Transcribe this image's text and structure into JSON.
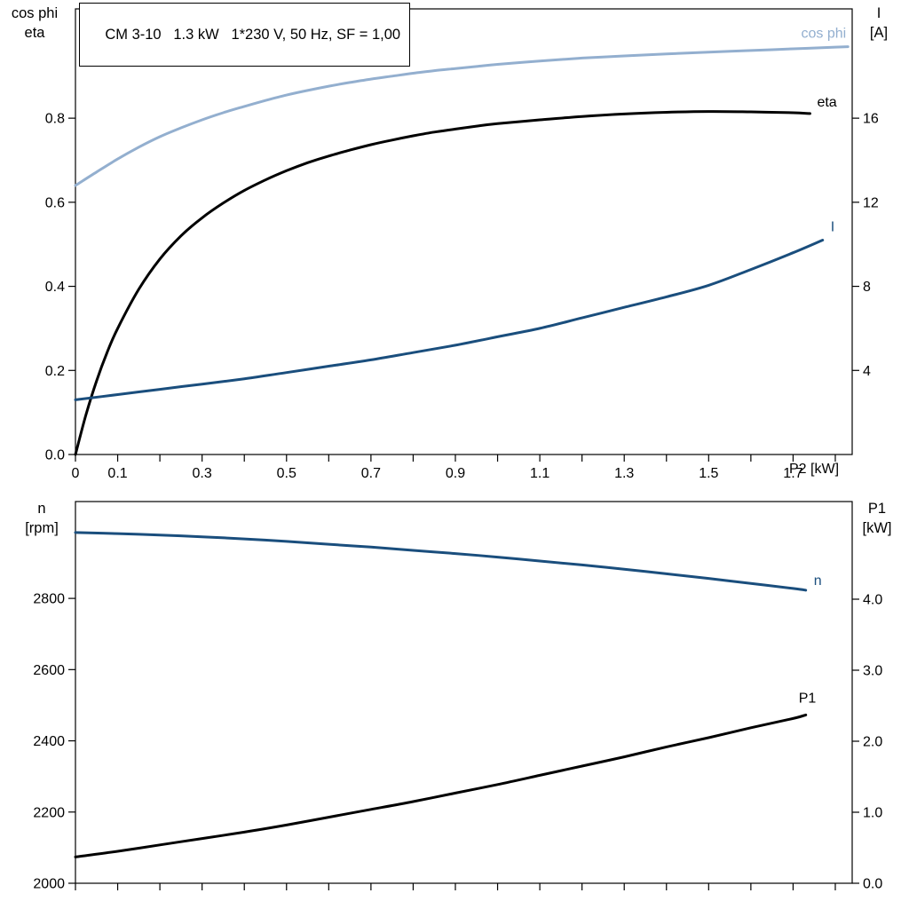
{
  "title_box": {
    "text": "CM 3-10   1.3 kW   1*230 V, 50 Hz, SF = 1,00"
  },
  "chart_data": [
    {
      "type": "line",
      "title": "CM 3-10   1.3 kW   1*230 V, 50 Hz, SF = 1,00",
      "x_axis": {
        "label": "P2 [kW]",
        "range": [
          0,
          1.84
        ],
        "tick_values": [
          0,
          0.1,
          0.2,
          0.3,
          0.4,
          0.5,
          0.6,
          0.7,
          0.8,
          0.9,
          1.0,
          1.1,
          1.2,
          1.3,
          1.4,
          1.5,
          1.6,
          1.7,
          1.8
        ],
        "tick_labels": [
          "0",
          "0.1",
          "",
          "0.3",
          "",
          "0.5",
          "",
          "0.7",
          "",
          "0.9",
          "",
          "1.1",
          "",
          "1.3",
          "",
          "1.5",
          "",
          "1.7",
          ""
        ]
      },
      "left_axis": {
        "label_lines": [
          "cos phi",
          "eta"
        ],
        "range": [
          0,
          1.06
        ],
        "tick_values": [
          0.0,
          0.2,
          0.4,
          0.6,
          0.8
        ],
        "tick_labels": [
          "0.0",
          "0.2",
          "0.4",
          "0.6",
          "0.8"
        ]
      },
      "right_axis": {
        "label_lines": [
          "I",
          "[A]"
        ],
        "range": [
          0,
          21.2
        ],
        "tick_values": [
          4,
          8,
          12,
          16
        ],
        "tick_labels": [
          "4",
          "8",
          "12",
          "16"
        ]
      },
      "grid": false,
      "series": [
        {
          "name": "cos phi",
          "axis": "left",
          "color": "#93afcf",
          "points": [
            [
              0,
              0.64
            ],
            [
              0.05,
              0.672
            ],
            [
              0.1,
              0.703
            ],
            [
              0.15,
              0.731
            ],
            [
              0.2,
              0.756
            ],
            [
              0.25,
              0.777
            ],
            [
              0.3,
              0.796
            ],
            [
              0.35,
              0.813
            ],
            [
              0.4,
              0.828
            ],
            [
              0.45,
              0.842
            ],
            [
              0.5,
              0.855
            ],
            [
              0.55,
              0.866
            ],
            [
              0.6,
              0.876
            ],
            [
              0.65,
              0.885
            ],
            [
              0.7,
              0.893
            ],
            [
              0.75,
              0.9
            ],
            [
              0.8,
              0.907
            ],
            [
              0.85,
              0.913
            ],
            [
              0.9,
              0.918
            ],
            [
              0.95,
              0.923
            ],
            [
              1.0,
              0.928
            ],
            [
              1.1,
              0.936
            ],
            [
              1.2,
              0.943
            ],
            [
              1.3,
              0.948
            ],
            [
              1.4,
              0.953
            ],
            [
              1.5,
              0.957
            ],
            [
              1.6,
              0.961
            ],
            [
              1.7,
              0.965
            ],
            [
              1.8,
              0.969
            ],
            [
              1.83,
              0.97
            ]
          ]
        },
        {
          "name": "eta",
          "axis": "left",
          "color": "#000000",
          "points": [
            [
              0,
              0.0
            ],
            [
              0.025,
              0.095
            ],
            [
              0.05,
              0.175
            ],
            [
              0.075,
              0.243
            ],
            [
              0.1,
              0.3
            ],
            [
              0.15,
              0.393
            ],
            [
              0.2,
              0.465
            ],
            [
              0.25,
              0.52
            ],
            [
              0.3,
              0.563
            ],
            [
              0.35,
              0.598
            ],
            [
              0.4,
              0.628
            ],
            [
              0.45,
              0.653
            ],
            [
              0.5,
              0.675
            ],
            [
              0.55,
              0.694
            ],
            [
              0.6,
              0.71
            ],
            [
              0.65,
              0.724
            ],
            [
              0.7,
              0.737
            ],
            [
              0.75,
              0.748
            ],
            [
              0.8,
              0.758
            ],
            [
              0.85,
              0.767
            ],
            [
              0.9,
              0.774
            ],
            [
              0.95,
              0.781
            ],
            [
              1.0,
              0.787
            ],
            [
              1.1,
              0.796
            ],
            [
              1.2,
              0.804
            ],
            [
              1.3,
              0.81
            ],
            [
              1.4,
              0.814
            ],
            [
              1.5,
              0.816
            ],
            [
              1.6,
              0.815
            ],
            [
              1.7,
              0.813
            ],
            [
              1.74,
              0.811
            ]
          ]
        },
        {
          "name": "I",
          "axis": "right",
          "color": "#1a4e7d",
          "points": [
            [
              0,
              2.6
            ],
            [
              0.1,
              2.85
            ],
            [
              0.2,
              3.1
            ],
            [
              0.3,
              3.35
            ],
            [
              0.4,
              3.6
            ],
            [
              0.5,
              3.9
            ],
            [
              0.6,
              4.2
            ],
            [
              0.7,
              4.5
            ],
            [
              0.8,
              4.85
            ],
            [
              0.9,
              5.2
            ],
            [
              1.0,
              5.6
            ],
            [
              1.1,
              6.0
            ],
            [
              1.2,
              6.5
            ],
            [
              1.3,
              7.0
            ],
            [
              1.4,
              7.5
            ],
            [
              1.5,
              8.05
            ],
            [
              1.6,
              8.8
            ],
            [
              1.7,
              9.6
            ],
            [
              1.77,
              10.2
            ]
          ]
        }
      ]
    },
    {
      "type": "line",
      "title": "",
      "x_axis": {
        "label": "",
        "range": [
          0,
          1.84
        ],
        "tick_values": [
          0,
          0.1,
          0.2,
          0.3,
          0.4,
          0.5,
          0.6,
          0.7,
          0.8,
          0.9,
          1.0,
          1.1,
          1.2,
          1.3,
          1.4,
          1.5,
          1.6,
          1.7,
          1.8
        ],
        "tick_labels": [
          "",
          "",
          "",
          "",
          "",
          "",
          "",
          "",
          "",
          "",
          "",
          "",
          "",
          "",
          "",
          "",
          "",
          "",
          ""
        ]
      },
      "left_axis": {
        "label_lines": [
          "n",
          "[rpm]"
        ],
        "range": [
          2000,
          3072
        ],
        "tick_values": [
          2000,
          2200,
          2400,
          2600,
          2800
        ],
        "tick_labels": [
          "2000",
          "2200",
          "2400",
          "2600",
          "2800"
        ]
      },
      "right_axis": {
        "label_lines": [
          "P1",
          "[kW]"
        ],
        "range": [
          0,
          5.375
        ],
        "tick_values": [
          0.0,
          1.0,
          2.0,
          3.0,
          4.0
        ],
        "tick_labels": [
          "0.0",
          "1.0",
          "2.0",
          "3.0",
          "4.0"
        ]
      },
      "grid": false,
      "series": [
        {
          "name": "n",
          "axis": "left",
          "color": "#1a4e7d",
          "points": [
            [
              0,
              2985
            ],
            [
              0.1,
              2982
            ],
            [
              0.2,
              2978
            ],
            [
              0.3,
              2973
            ],
            [
              0.4,
              2967
            ],
            [
              0.5,
              2960
            ],
            [
              0.6,
              2952
            ],
            [
              0.7,
              2944
            ],
            [
              0.8,
              2935
            ],
            [
              0.9,
              2926
            ],
            [
              1.0,
              2916
            ],
            [
              1.1,
              2905
            ],
            [
              1.2,
              2894
            ],
            [
              1.3,
              2882
            ],
            [
              1.4,
              2869
            ],
            [
              1.5,
              2856
            ],
            [
              1.6,
              2842
            ],
            [
              1.7,
              2828
            ],
            [
              1.73,
              2823
            ]
          ]
        },
        {
          "name": "P1",
          "axis": "right",
          "color": "#000000",
          "points": [
            [
              0,
              0.37
            ],
            [
              0.1,
              0.45
            ],
            [
              0.2,
              0.54
            ],
            [
              0.3,
              0.63
            ],
            [
              0.4,
              0.72
            ],
            [
              0.5,
              0.82
            ],
            [
              0.6,
              0.93
            ],
            [
              0.7,
              1.04
            ],
            [
              0.8,
              1.15
            ],
            [
              0.9,
              1.27
            ],
            [
              1.0,
              1.39
            ],
            [
              1.1,
              1.52
            ],
            [
              1.2,
              1.65
            ],
            [
              1.3,
              1.78
            ],
            [
              1.4,
              1.92
            ],
            [
              1.5,
              2.05
            ],
            [
              1.6,
              2.19
            ],
            [
              1.7,
              2.32
            ],
            [
              1.73,
              2.37
            ]
          ]
        }
      ]
    }
  ]
}
